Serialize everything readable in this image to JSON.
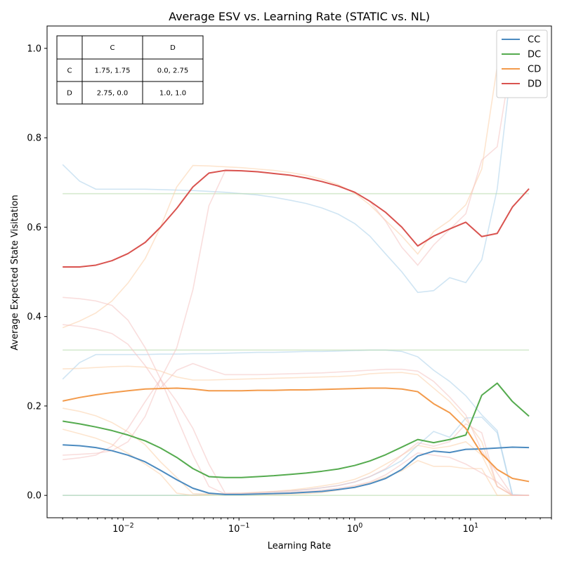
{
  "chart_data": {
    "type": "line",
    "title": "Average ESV vs. Learning Rate (STATIC vs. NL)",
    "xlabel": "Learning Rate",
    "ylabel": "Average Expected State Visitation",
    "xscale": "log",
    "xlim": [
      0.0022,
      50
    ],
    "ylim": [
      -0.05,
      1.05
    ],
    "x_ticks": [
      {
        "value": 0.01,
        "base": "10",
        "exp": "−2"
      },
      {
        "value": 0.1,
        "base": "10",
        "exp": "−1"
      },
      {
        "value": 1,
        "base": "10",
        "exp": "0"
      },
      {
        "value": 10,
        "base": "10",
        "exp": "1"
      }
    ],
    "y_ticks": [
      {
        "value": 0.0,
        "label": "0.0"
      },
      {
        "value": 0.2,
        "label": "0.2"
      },
      {
        "value": 0.4,
        "label": "0.4"
      },
      {
        "value": 0.6,
        "label": "0.6"
      },
      {
        "value": 0.8,
        "label": "0.8"
      },
      {
        "value": 1.0,
        "label": "1.0"
      }
    ],
    "grid": false,
    "legend_position": "top-right",
    "x": [
      0.003,
      0.0042,
      0.0058,
      0.008,
      0.011,
      0.0155,
      0.021,
      0.029,
      0.04,
      0.055,
      0.076,
      0.105,
      0.145,
      0.2,
      0.28,
      0.38,
      0.52,
      0.72,
      1.0,
      1.35,
      1.85,
      2.55,
      3.5,
      4.8,
      6.6,
      9.1,
      12.5,
      17,
      23,
      32
    ],
    "series": [
      {
        "name": "CC",
        "color": "#4c8bc0",
        "values": [
          0.113,
          0.111,
          0.107,
          0.1,
          0.09,
          0.075,
          0.056,
          0.035,
          0.016,
          0.005,
          0.002,
          0.002,
          0.003,
          0.004,
          0.005,
          0.007,
          0.009,
          0.013,
          0.018,
          0.026,
          0.038,
          0.058,
          0.088,
          0.099,
          0.096,
          0.103,
          0.104,
          0.106,
          0.108,
          0.107
        ]
      },
      {
        "name": "DC",
        "color": "#55ab4f",
        "values": [
          0.166,
          0.16,
          0.153,
          0.145,
          0.135,
          0.122,
          0.106,
          0.085,
          0.06,
          0.042,
          0.04,
          0.04,
          0.042,
          0.044,
          0.047,
          0.05,
          0.054,
          0.059,
          0.067,
          0.077,
          0.091,
          0.108,
          0.125,
          0.118,
          0.125,
          0.135,
          0.224,
          0.251,
          0.21,
          0.177
        ]
      },
      {
        "name": "CD",
        "color": "#f39b4c",
        "values": [
          0.211,
          0.219,
          0.225,
          0.23,
          0.234,
          0.238,
          0.239,
          0.24,
          0.238,
          0.234,
          0.234,
          0.234,
          0.235,
          0.235,
          0.236,
          0.236,
          0.237,
          0.238,
          0.239,
          0.24,
          0.24,
          0.238,
          0.232,
          0.205,
          0.185,
          0.15,
          0.093,
          0.058,
          0.038,
          0.031
        ]
      },
      {
        "name": "DD",
        "color": "#d9534f",
        "values": [
          0.511,
          0.511,
          0.515,
          0.525,
          0.541,
          0.566,
          0.6,
          0.642,
          0.69,
          0.721,
          0.727,
          0.726,
          0.724,
          0.72,
          0.716,
          0.71,
          0.702,
          0.692,
          0.678,
          0.658,
          0.633,
          0.6,
          0.558,
          0.58,
          0.596,
          0.611,
          0.579,
          0.586,
          0.645,
          0.686
        ]
      }
    ],
    "background_lines": [
      {
        "color": "#a9cfe9",
        "values": [
          0.74,
          0.703,
          0.685,
          0.685,
          0.685,
          0.685,
          0.684,
          0.683,
          0.682,
          0.68,
          0.678,
          0.675,
          0.672,
          0.667,
          0.66,
          0.653,
          0.643,
          0.629,
          0.608,
          0.58,
          0.54,
          0.5,
          0.454,
          0.458,
          0.487,
          0.476,
          0.527,
          0.685,
          0.98,
          0.98
        ]
      },
      {
        "color": "#a9cfe9",
        "values": [
          0.26,
          0.297,
          0.315,
          0.315,
          0.315,
          0.315,
          0.316,
          0.316,
          0.317,
          0.317,
          0.318,
          0.319,
          0.32,
          0.32,
          0.321,
          0.322,
          0.322,
          0.323,
          0.324,
          0.325,
          0.325,
          0.322,
          0.31,
          0.28,
          0.255,
          0.223,
          0.18,
          0.145,
          0.002,
          0.0
        ]
      },
      {
        "color": "#a9cfe9",
        "values": [
          0.0,
          0.0,
          0.0,
          0.0,
          0.0,
          0.0,
          0.0,
          0.0,
          0.001,
          0.002,
          0.003,
          0.004,
          0.006,
          0.008,
          0.01,
          0.013,
          0.017,
          0.022,
          0.03,
          0.042,
          0.058,
          0.078,
          0.112,
          0.143,
          0.13,
          0.173,
          0.175,
          0.14,
          0.0,
          0.0
        ]
      },
      {
        "color": "#b5d9a8",
        "values": [
          0.675,
          0.675,
          0.675,
          0.675,
          0.675,
          0.675,
          0.675,
          0.675,
          0.675,
          0.675,
          0.675,
          0.675,
          0.675,
          0.675,
          0.675,
          0.675,
          0.675,
          0.675,
          0.675,
          0.675,
          0.675,
          0.675,
          0.675,
          0.675,
          0.675,
          0.675,
          0.675,
          0.675,
          0.675,
          0.675
        ]
      },
      {
        "color": "#b5d9a8",
        "values": [
          0.325,
          0.325,
          0.325,
          0.325,
          0.325,
          0.325,
          0.325,
          0.325,
          0.325,
          0.325,
          0.325,
          0.325,
          0.325,
          0.325,
          0.325,
          0.325,
          0.325,
          0.325,
          0.325,
          0.325,
          0.325,
          0.325,
          0.325,
          0.325,
          0.325,
          0.325,
          0.325,
          0.325,
          0.325,
          0.325
        ]
      },
      {
        "color": "#b5d9a8",
        "values": [
          0.0,
          0.0,
          0.0,
          0.0,
          0.0,
          0.0,
          0.0,
          0.0,
          0.0,
          0.0,
          0.0,
          0.0,
          0.0,
          0.0,
          0.0,
          0.0,
          0.0,
          0.0,
          0.0,
          0.0,
          0.0,
          0.0,
          0.0,
          0.0,
          0.0,
          0.0,
          0.0,
          0.0,
          0.0,
          0.0
        ]
      },
      {
        "color": "#fbd0a8",
        "values": [
          0.375,
          0.39,
          0.408,
          0.435,
          0.475,
          0.53,
          0.6,
          0.69,
          0.738,
          0.737,
          0.735,
          0.733,
          0.73,
          0.727,
          0.722,
          0.716,
          0.707,
          0.695,
          0.676,
          0.65,
          0.615,
          0.58,
          0.54,
          0.59,
          0.615,
          0.65,
          0.73,
          0.96,
          0.99,
          0.99
        ]
      },
      {
        "color": "#fbd0a8",
        "values": [
          0.283,
          0.284,
          0.286,
          0.288,
          0.289,
          0.287,
          0.278,
          0.265,
          0.258,
          0.258,
          0.259,
          0.26,
          0.261,
          0.262,
          0.263,
          0.264,
          0.265,
          0.266,
          0.268,
          0.272,
          0.274,
          0.275,
          0.27,
          0.24,
          0.21,
          0.17,
          0.12,
          0.02,
          0.0,
          0.0
        ]
      },
      {
        "color": "#fbd0a8",
        "values": [
          0.195,
          0.188,
          0.178,
          0.163,
          0.142,
          0.113,
          0.075,
          0.04,
          0.004,
          0.003,
          0.004,
          0.005,
          0.007,
          0.009,
          0.012,
          0.016,
          0.021,
          0.027,
          0.036,
          0.05,
          0.07,
          0.09,
          0.112,
          0.105,
          0.11,
          0.12,
          0.09,
          0.02,
          0.0,
          0.0
        ]
      },
      {
        "color": "#fbd0a8",
        "values": [
          0.148,
          0.138,
          0.128,
          0.114,
          0.094,
          0.07,
          0.047,
          0.005,
          0.0,
          0.002,
          0.002,
          0.002,
          0.002,
          0.002,
          0.003,
          0.004,
          0.006,
          0.012,
          0.02,
          0.028,
          0.041,
          0.055,
          0.078,
          0.065,
          0.065,
          0.06,
          0.06,
          0.0,
          0.0,
          0.0
        ]
      },
      {
        "color": "#f4c2c1",
        "values": [
          0.443,
          0.44,
          0.435,
          0.425,
          0.392,
          0.33,
          0.26,
          0.21,
          0.15,
          0.07,
          0.005,
          0.005,
          0.006,
          0.008,
          0.01,
          0.013,
          0.017,
          0.022,
          0.03,
          0.042,
          0.06,
          0.09,
          0.118,
          0.11,
          0.12,
          0.16,
          0.14,
          0.02,
          0.0,
          0.0
        ]
      },
      {
        "color": "#f4c2c1",
        "values": [
          0.382,
          0.378,
          0.372,
          0.362,
          0.338,
          0.29,
          0.24,
          0.28,
          0.295,
          0.282,
          0.27,
          0.27,
          0.27,
          0.271,
          0.272,
          0.273,
          0.274,
          0.276,
          0.278,
          0.28,
          0.282,
          0.282,
          0.278,
          0.255,
          0.22,
          0.18,
          0.1,
          0.05,
          0.0,
          0.0
        ]
      },
      {
        "color": "#f4c2c1",
        "values": [
          0.09,
          0.092,
          0.094,
          0.1,
          0.12,
          0.177,
          0.26,
          0.175,
          0.09,
          0.02,
          0.003,
          0.003,
          0.004,
          0.005,
          0.007,
          0.009,
          0.012,
          0.016,
          0.022,
          0.03,
          0.046,
          0.07,
          0.095,
          0.09,
          0.085,
          0.07,
          0.05,
          0.03,
          0.0,
          0.0
        ]
      },
      {
        "color": "#f4c2c1",
        "values": [
          0.08,
          0.084,
          0.09,
          0.11,
          0.15,
          0.21,
          0.26,
          0.33,
          0.46,
          0.648,
          0.726,
          0.726,
          0.724,
          0.72,
          0.716,
          0.71,
          0.702,
          0.692,
          0.678,
          0.658,
          0.613,
          0.555,
          0.515,
          0.56,
          0.595,
          0.63,
          0.75,
          0.78,
          0.99,
          0.99
        ]
      }
    ],
    "payoff_table": {
      "header": [
        "",
        "C",
        "D"
      ],
      "rows": [
        [
          "C",
          "1.75, 1.75",
          "0.0, 2.75"
        ],
        [
          "D",
          "2.75, 0.0",
          "1.0, 1.0"
        ]
      ]
    }
  }
}
